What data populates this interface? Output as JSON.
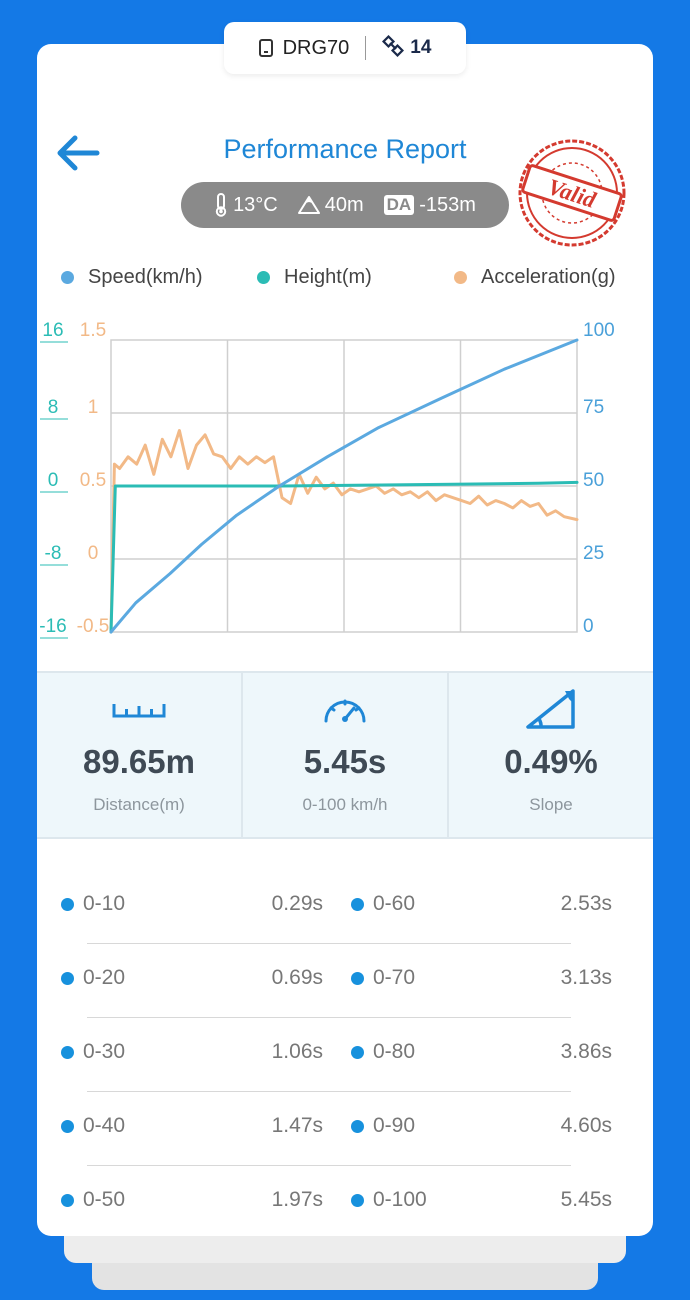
{
  "device": {
    "name": "DRG70",
    "satellites": "14"
  },
  "header": {
    "title": "Performance Report",
    "stamp_text": "Valid"
  },
  "conditions": {
    "temperature": "13°C",
    "altitude": "40m",
    "da_label": "DA",
    "density_altitude": "-153m"
  },
  "colors": {
    "speed": "#5ba9e0",
    "height": "#2bbcb5",
    "acceleration": "#f2b987",
    "accent": "#1f87d6",
    "stamp": "#d43a2f"
  },
  "chart_data": {
    "type": "line",
    "legend": [
      "Speed(km/h)",
      "Height(m)",
      "Acceleration(g)"
    ],
    "axes": {
      "height_left": {
        "ticks": [
          "16",
          "8",
          "0",
          "-8",
          "-16"
        ],
        "range": [
          -16,
          16
        ]
      },
      "accel_left": {
        "ticks": [
          "1.5",
          "1",
          "0.5",
          "0",
          "-0.5"
        ],
        "range": [
          -0.5,
          1.5
        ]
      },
      "speed_right": {
        "ticks": [
          "100",
          "75",
          "50",
          "25",
          "0"
        ],
        "range": [
          0,
          100
        ]
      }
    },
    "x_range": [
      0,
      5.45
    ],
    "series": [
      {
        "name": "Speed(km/h)",
        "axis": "speed_right",
        "x": [
          0,
          0.29,
          0.69,
          1.06,
          1.47,
          1.97,
          2.53,
          3.13,
          3.86,
          4.6,
          5.45
        ],
        "y": [
          0,
          10,
          20,
          30,
          40,
          50,
          60,
          70,
          80,
          90,
          100
        ]
      },
      {
        "name": "Height(m)",
        "axis": "height_left",
        "x": [
          0,
          0.05,
          1.0,
          2.0,
          3.0,
          4.0,
          5.0,
          5.45
        ],
        "y": [
          -16,
          0,
          0,
          0,
          0.1,
          0.2,
          0.3,
          0.4
        ]
      },
      {
        "name": "Acceleration(g)",
        "axis": "accel_left",
        "x": [
          0,
          0.04,
          0.1,
          0.2,
          0.3,
          0.4,
          0.5,
          0.6,
          0.7,
          0.8,
          0.9,
          1.0,
          1.1,
          1.2,
          1.3,
          1.4,
          1.5,
          1.6,
          1.7,
          1.8,
          1.9,
          2.0,
          2.1,
          2.2,
          2.3,
          2.4,
          2.5,
          2.6,
          2.7,
          2.8,
          2.9,
          3.0,
          3.1,
          3.2,
          3.3,
          3.4,
          3.5,
          3.6,
          3.7,
          3.8,
          3.9,
          4.0,
          4.1,
          4.2,
          4.3,
          4.4,
          4.5,
          4.6,
          4.7,
          4.8,
          4.9,
          5.0,
          5.1,
          5.2,
          5.3,
          5.45
        ],
        "y": [
          -0.5,
          0.65,
          0.62,
          0.7,
          0.65,
          0.78,
          0.58,
          0.82,
          0.7,
          0.88,
          0.62,
          0.78,
          0.85,
          0.72,
          0.7,
          0.62,
          0.7,
          0.65,
          0.7,
          0.66,
          0.7,
          0.42,
          0.38,
          0.58,
          0.45,
          0.56,
          0.48,
          0.52,
          0.44,
          0.48,
          0.46,
          0.48,
          0.5,
          0.45,
          0.48,
          0.44,
          0.46,
          0.42,
          0.46,
          0.4,
          0.44,
          0.42,
          0.4,
          0.38,
          0.43,
          0.37,
          0.4,
          0.38,
          0.35,
          0.4,
          0.36,
          0.38,
          0.3,
          0.33,
          0.29,
          0.27
        ]
      }
    ]
  },
  "stats": [
    {
      "value": "89.65m",
      "label": "Distance(m)",
      "icon": "ruler-icon"
    },
    {
      "value": "5.45s",
      "label": "0-100 km/h",
      "icon": "speedometer-icon"
    },
    {
      "value": "0.49%",
      "label": "Slope",
      "icon": "slope-icon"
    }
  ],
  "splits": [
    {
      "left_range": "0-10",
      "left_time": "0.29s",
      "right_range": "0-60",
      "right_time": "2.53s"
    },
    {
      "left_range": "0-20",
      "left_time": "0.69s",
      "right_range": "0-70",
      "right_time": "3.13s"
    },
    {
      "left_range": "0-30",
      "left_time": "1.06s",
      "right_range": "0-80",
      "right_time": "3.86s"
    },
    {
      "left_range": "0-40",
      "left_time": "1.47s",
      "right_range": "0-90",
      "right_time": "4.60s"
    },
    {
      "left_range": "0-50",
      "left_time": "1.97s",
      "right_range": "0-100",
      "right_time": "5.45s"
    }
  ]
}
